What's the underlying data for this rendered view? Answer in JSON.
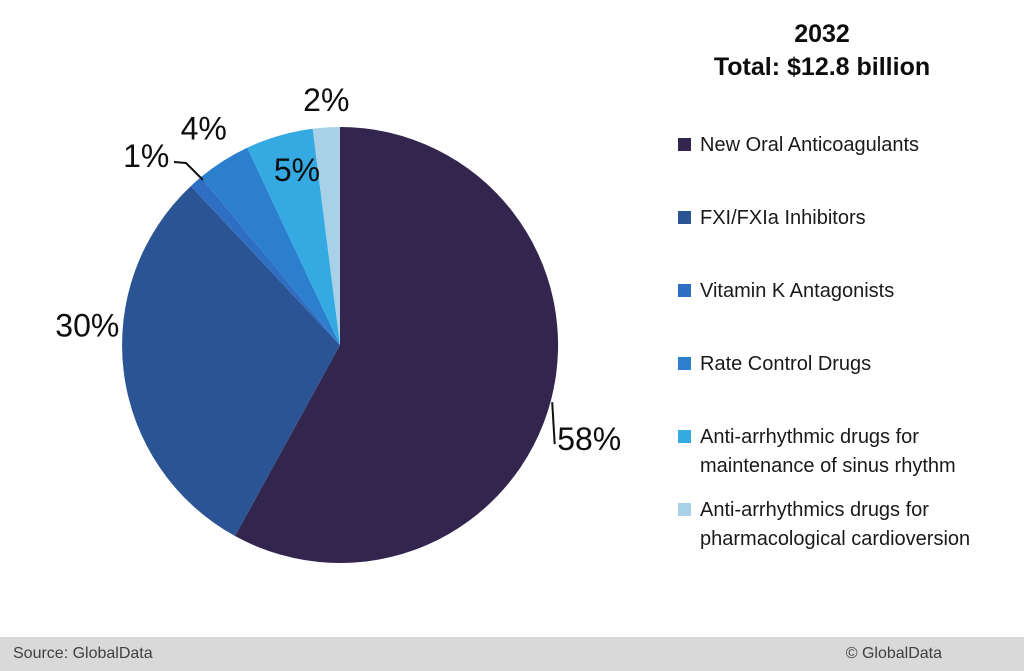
{
  "chart_data": {
    "type": "pie",
    "title": "2032",
    "subtitle": "Total: $12.8 billion",
    "unit": "%",
    "legend_position": "right",
    "start_angle_deg": 0,
    "direction": "clockwise",
    "slices": [
      {
        "label": "New Oral Anticoagulants",
        "value": 58,
        "display": "58%",
        "color": "#32254e"
      },
      {
        "label": "FXI/FXIa Inhibitors",
        "value": 30,
        "display": "30%",
        "color": "#2a5493"
      },
      {
        "label": "Vitamin K Antagonists",
        "value": 1,
        "display": "1%",
        "color": "#2e6fc4"
      },
      {
        "label": "Rate Control Drugs",
        "value": 4,
        "display": "4%",
        "color": "#2c7fcc"
      },
      {
        "label": "Anti-arrhythmic drugs for maintenance of sinus rhythm",
        "value": 5,
        "display": "5%",
        "color": "#35a9e1"
      },
      {
        "label": "Anti-arrhythmics drugs for pharmacological cardioversion",
        "value": 2,
        "display": "2%",
        "color": "#a8d1e7"
      }
    ]
  },
  "footer": {
    "source": "Source: GlobalData",
    "copyright": "© GlobalData"
  }
}
